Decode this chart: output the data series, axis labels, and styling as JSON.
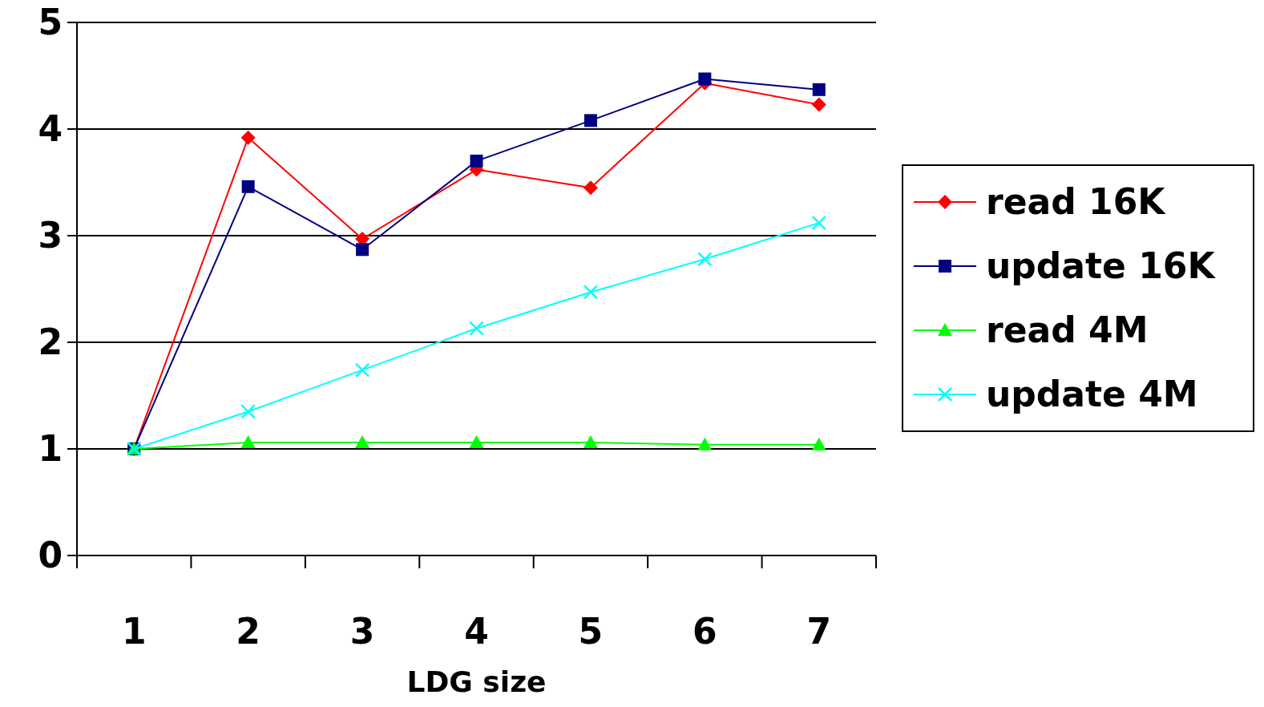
{
  "chart_data": {
    "type": "line",
    "xlabel": "LDG size",
    "categories": [
      "1",
      "2",
      "3",
      "4",
      "5",
      "6",
      "7"
    ],
    "series": [
      {
        "name": "read 16K",
        "color": "#ff0000",
        "marker": "diamond",
        "values": [
          1.0,
          3.92,
          2.97,
          3.62,
          3.45,
          4.43,
          4.23
        ]
      },
      {
        "name": "update 16K",
        "color": "#000080",
        "marker": "square",
        "values": [
          1.0,
          3.46,
          2.87,
          3.7,
          4.08,
          4.47,
          4.37
        ]
      },
      {
        "name": "read 4M",
        "color": "#00ff00",
        "marker": "triangle",
        "values": [
          1.0,
          1.06,
          1.06,
          1.06,
          1.06,
          1.04,
          1.04
        ]
      },
      {
        "name": "update 4M",
        "color": "#00ffff",
        "marker": "cross",
        "values": [
          1.0,
          1.35,
          1.74,
          2.13,
          2.47,
          2.78,
          3.12
        ]
      }
    ],
    "ylim": [
      0,
      5
    ],
    "yticks": [
      0,
      1,
      2,
      3,
      4,
      5
    ],
    "grid": "y",
    "legend": "right",
    "line_style": "solid"
  }
}
